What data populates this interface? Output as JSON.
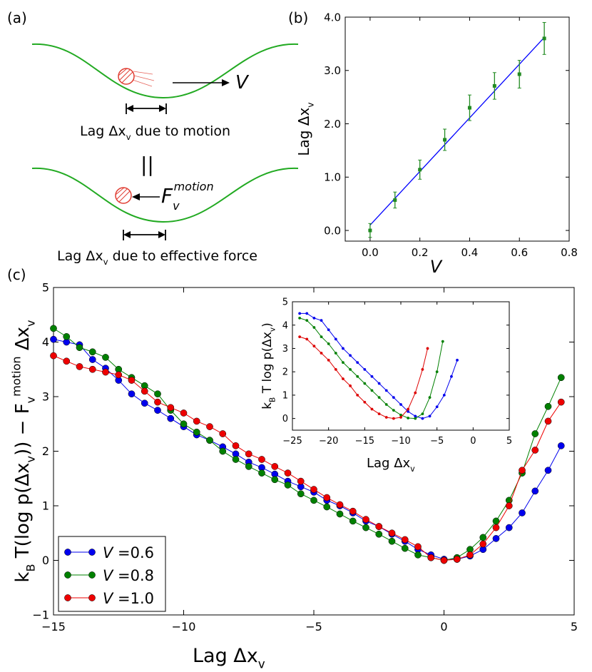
{
  "panel_a": {
    "label": "(a)",
    "velocity_label": "V",
    "caption_top": "Lag Δx_v due to motion",
    "equals_sign": "||",
    "force_label": "F_v^motion",
    "caption_bottom": "Lag Δx_v due to effective force",
    "colors": {
      "potential": "#22aa22",
      "particle": "#e03c31",
      "text": "#000000"
    }
  },
  "chart_data": [
    {
      "panel": "(b)",
      "type": "scatter",
      "xlabel": "V",
      "ylabel": "Lag Δx_v",
      "xlim": [
        -0.1,
        0.8
      ],
      "ylim": [
        -0.2,
        4.0
      ],
      "xticks": [
        "0.0",
        "0.2",
        "0.4",
        "0.6",
        "0.8"
      ],
      "yticks": [
        "0.0",
        "1.0",
        "2.0",
        "3.0",
        "4.0"
      ],
      "x": [
        0.0,
        0.1,
        0.2,
        0.3,
        0.4,
        0.5,
        0.6,
        0.7
      ],
      "y": [
        0.0,
        0.57,
        1.14,
        1.7,
        2.3,
        2.71,
        2.93,
        3.6
      ],
      "yerr": [
        0.13,
        0.15,
        0.18,
        0.2,
        0.24,
        0.25,
        0.26,
        0.3
      ],
      "fit_line": {
        "x": [
          0.0,
          0.7
        ],
        "y": [
          0.1,
          3.62
        ]
      },
      "colors": {
        "points": "#228b22",
        "fit": "#0000ff"
      }
    },
    {
      "panel": "(c)",
      "type": "line",
      "xlabel": "Lag Δx_v",
      "ylabel": "k_B T(log p(Δx_v)) − F_v^motion Δx_v",
      "xlim": [
        -15,
        5
      ],
      "ylim": [
        -1,
        5
      ],
      "xticks": [
        "−15",
        "−10",
        "−5",
        "0",
        "5"
      ],
      "yticks": [
        "−1",
        "0",
        "1",
        "2",
        "3",
        "4",
        "5"
      ],
      "legend": "lower-left",
      "x": [
        -15.0,
        -14.5,
        -14.0,
        -13.5,
        -13.0,
        -12.5,
        -12.0,
        -11.5,
        -11.0,
        -10.5,
        -10.0,
        -9.5,
        -9.0,
        -8.5,
        -8.0,
        -7.5,
        -7.0,
        -6.5,
        -6.0,
        -5.5,
        -5.0,
        -4.5,
        -4.0,
        -3.5,
        -3.0,
        -2.5,
        -2.0,
        -1.5,
        -1.0,
        -0.5,
        0.0,
        0.5,
        1.0,
        1.5,
        2.0,
        2.5,
        3.0,
        3.5,
        4.0,
        4.5
      ],
      "series": [
        {
          "name": "V =0.6",
          "color": "#0000ee",
          "values": [
            4.05,
            4.0,
            3.95,
            3.68,
            3.52,
            3.3,
            3.05,
            2.88,
            2.75,
            2.6,
            2.45,
            2.3,
            2.2,
            2.08,
            1.95,
            1.8,
            1.7,
            1.58,
            1.45,
            1.35,
            1.25,
            1.1,
            1.0,
            0.87,
            0.72,
            0.62,
            0.48,
            0.35,
            0.2,
            0.1,
            0.02,
            0.02,
            0.08,
            0.2,
            0.4,
            0.6,
            0.87,
            1.27,
            1.65,
            2.1
          ]
        },
        {
          "name": "V =0.8",
          "color": "#008000",
          "values": [
            4.25,
            4.1,
            3.9,
            3.82,
            3.72,
            3.5,
            3.35,
            3.2,
            3.05,
            2.75,
            2.5,
            2.35,
            2.2,
            2.0,
            1.85,
            1.72,
            1.6,
            1.48,
            1.38,
            1.22,
            1.1,
            0.98,
            0.85,
            0.72,
            0.6,
            0.48,
            0.35,
            0.22,
            0.1,
            0.05,
            0.0,
            0.05,
            0.2,
            0.42,
            0.72,
            1.1,
            1.6,
            2.32,
            2.82,
            3.35
          ]
        },
        {
          "name": "V =1.0",
          "color": "#ee0000",
          "values": [
            3.75,
            3.65,
            3.55,
            3.5,
            3.45,
            3.4,
            3.3,
            3.1,
            2.9,
            2.8,
            2.7,
            2.55,
            2.45,
            2.32,
            2.1,
            1.95,
            1.85,
            1.72,
            1.6,
            1.45,
            1.3,
            1.15,
            1.02,
            0.9,
            0.75,
            0.62,
            0.5,
            0.38,
            0.25,
            0.05,
            0.0,
            0.02,
            0.1,
            0.3,
            0.6,
            1.0,
            1.65,
            2.02,
            2.55,
            2.9
          ]
        }
      ]
    },
    {
      "panel": "(c)-inset",
      "type": "line",
      "xlabel": "Lag Δx_v",
      "ylabel": "k_B T log p(Δx_v)",
      "xlim": [
        -25,
        5
      ],
      "ylim": [
        -0.5,
        5
      ],
      "xticks": [
        "−25",
        "−20",
        "−15",
        "−10",
        "−5",
        "0",
        "5"
      ],
      "yticks": [
        "0",
        "1",
        "2",
        "3",
        "4",
        "5"
      ],
      "series": [
        {
          "color": "#0000ee",
          "x": [
            -24.0,
            -23.0,
            -22.0,
            -21.0,
            -20.0,
            -19.0,
            -18.0,
            -17.0,
            -16.0,
            -15.0,
            -14.0,
            -13.0,
            -12.0,
            -11.0,
            -10.0,
            -9.0,
            -8.0,
            -7.0,
            -6.0,
            -5.0,
            -4.0,
            -3.0,
            -2.2
          ],
          "values": [
            4.5,
            4.5,
            4.3,
            4.2,
            3.8,
            3.4,
            3.0,
            2.7,
            2.4,
            2.1,
            1.8,
            1.5,
            1.2,
            0.9,
            0.6,
            0.3,
            0.1,
            0.0,
            0.1,
            0.5,
            1.0,
            1.8,
            2.5
          ]
        },
        {
          "color": "#008000",
          "x": [
            -24.0,
            -23.0,
            -22.0,
            -21.0,
            -20.0,
            -19.0,
            -18.0,
            -17.0,
            -16.0,
            -15.0,
            -14.0,
            -13.0,
            -12.0,
            -11.0,
            -10.0,
            -9.0,
            -8.0,
            -7.0,
            -6.0,
            -5.0,
            -4.2
          ],
          "values": [
            4.3,
            4.2,
            3.9,
            3.5,
            3.2,
            2.8,
            2.4,
            2.1,
            1.8,
            1.5,
            1.2,
            0.9,
            0.6,
            0.35,
            0.15,
            0.02,
            0.0,
            0.2,
            0.9,
            2.0,
            3.3
          ]
        },
        {
          "color": "#dd0000",
          "x": [
            -24.0,
            -23.0,
            -22.0,
            -21.0,
            -20.0,
            -19.0,
            -18.0,
            -17.0,
            -16.0,
            -15.0,
            -14.0,
            -13.0,
            -12.0,
            -11.0,
            -10.0,
            -9.0,
            -8.0,
            -7.0,
            -6.3
          ],
          "values": [
            3.5,
            3.4,
            3.1,
            2.8,
            2.5,
            2.1,
            1.7,
            1.4,
            1.0,
            0.7,
            0.4,
            0.2,
            0.05,
            0.0,
            0.05,
            0.4,
            1.1,
            2.1,
            3.0
          ]
        }
      ]
    }
  ]
}
